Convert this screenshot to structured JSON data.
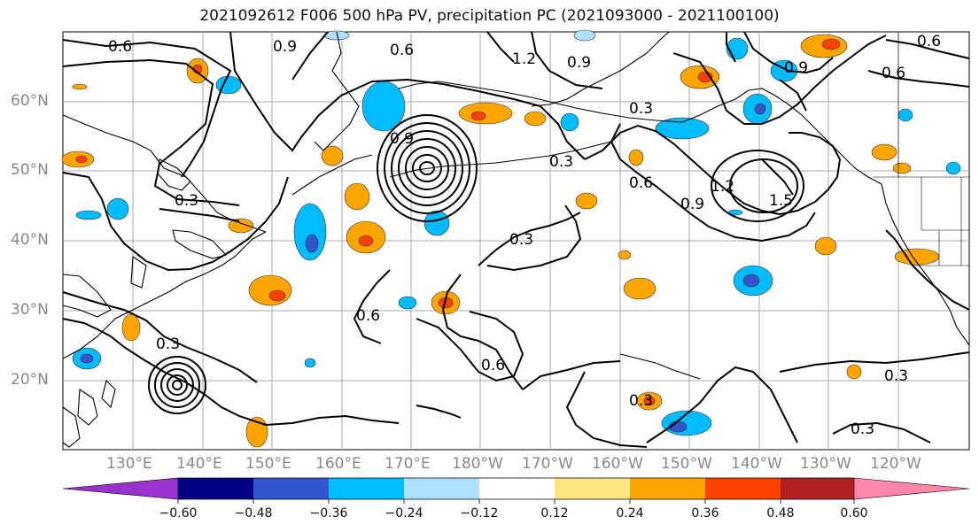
{
  "title": "2021092612 F006 500 hPa PV, precipitation PC (2021093000 - 2021100100)",
  "lat_labels": [
    "60°N",
    "50°N",
    "40°N",
    "30°N",
    "20°N"
  ],
  "lon_labels": [
    "130°E",
    "140°E",
    "150°E",
    "160°E",
    "170°E",
    "180°W",
    "170°W",
    "160°W",
    "150°W",
    "140°W",
    "130°W",
    "120°W"
  ],
  "contour_labels": [
    "0.6",
    "0.9",
    "0.6",
    "1.2",
    "0.9",
    "0.6",
    "0.9",
    "0.6",
    "0.3",
    "0.9",
    "0.3",
    "0.6",
    "1.2",
    "0.9",
    "1.5",
    "0.3",
    "0.3",
    "0.6",
    "0.6",
    "0.3",
    "0.3",
    "0.3",
    "0.3"
  ],
  "colorbar": {
    "labels": [
      "−0.60",
      "−0.48",
      "−0.36",
      "−0.24",
      "−0.12",
      "0.12",
      "0.24",
      "0.36",
      "0.48",
      "0.60"
    ],
    "colors": [
      "#9933cc",
      "#000080",
      "#3355cc",
      "#00bbff",
      "#b0e0ff",
      "#ffffff",
      "#ffe680",
      "#ffa500",
      "#ff4000",
      "#b22222",
      "#ff88aa"
    ]
  }
}
